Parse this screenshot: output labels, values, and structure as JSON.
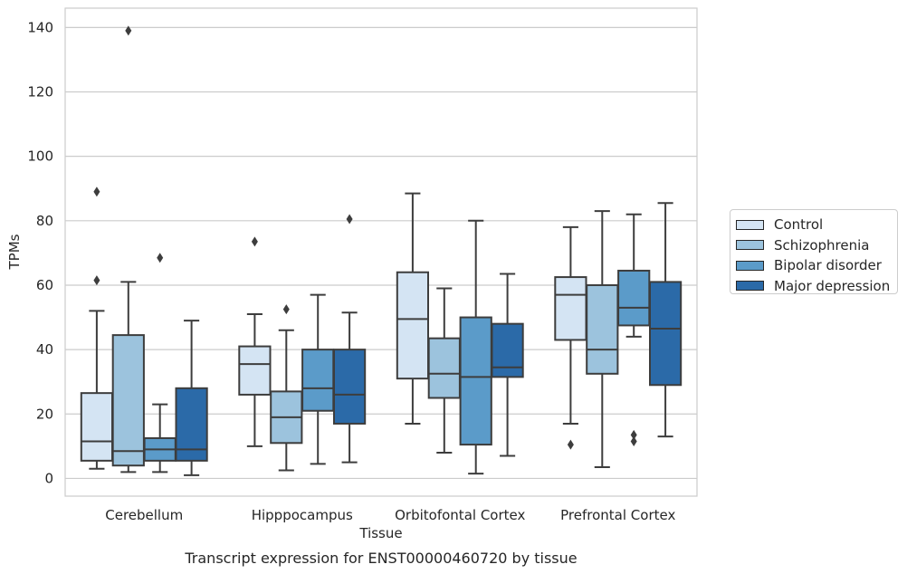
{
  "chart_data": {
    "type": "boxplot",
    "title": "Transcript expression for ENST00000460720 by tissue",
    "xlabel": "Tissue",
    "ylabel": "TPMs",
    "ylim": [
      -5.5,
      146
    ],
    "yticks": [
      0,
      20,
      40,
      60,
      80,
      100,
      120,
      140
    ],
    "grid": "horizontal",
    "legend_position": "right",
    "categories": [
      "Cerebellum",
      "Hipppocampus",
      "Orbitofontal Cortex",
      "Prefrontal Cortex"
    ],
    "series": [
      {
        "name": "Control",
        "color": "#d4e4f3",
        "boxes": [
          {
            "min": 3,
            "q1": 5.5,
            "median": 11.5,
            "q3": 26.5,
            "max": 52,
            "outliers": [
              61.5,
              89
            ]
          },
          {
            "min": 10,
            "q1": 26,
            "median": 35.5,
            "q3": 41,
            "max": 51,
            "outliers": [
              73.5
            ]
          },
          {
            "min": 17,
            "q1": 31,
            "median": 49.5,
            "q3": 64,
            "max": 88.5,
            "outliers": []
          },
          {
            "min": 17,
            "q1": 43,
            "median": 57,
            "q3": 62.5,
            "max": 78,
            "outliers": [
              10.5
            ]
          }
        ]
      },
      {
        "name": "Schizophrenia",
        "color": "#9cc3dd",
        "boxes": [
          {
            "min": 2,
            "q1": 4,
            "median": 8.5,
            "q3": 44.5,
            "max": 61,
            "outliers": [
              139
            ]
          },
          {
            "min": 2.5,
            "q1": 11,
            "median": 19,
            "q3": 27,
            "max": 46,
            "outliers": [
              52.5
            ]
          },
          {
            "min": 8,
            "q1": 25,
            "median": 32.5,
            "q3": 43.5,
            "max": 59,
            "outliers": []
          },
          {
            "min": 3.5,
            "q1": 32.5,
            "median": 40,
            "q3": 60,
            "max": 83,
            "outliers": []
          }
        ]
      },
      {
        "name": "Bipolar disorder",
        "color": "#5b9bc9",
        "boxes": [
          {
            "min": 2,
            "q1": 5.5,
            "median": 9,
            "q3": 12.5,
            "max": 23,
            "outliers": [
              68.5
            ]
          },
          {
            "min": 4.5,
            "q1": 21,
            "median": 28,
            "q3": 40,
            "max": 57,
            "outliers": []
          },
          {
            "min": 1.5,
            "q1": 10.5,
            "median": 31.5,
            "q3": 50,
            "max": 80,
            "outliers": []
          },
          {
            "min": 44,
            "q1": 47.5,
            "median": 53,
            "q3": 64.5,
            "max": 82,
            "outliers": [
              11.5,
              13.5
            ]
          }
        ]
      },
      {
        "name": "Major depression",
        "color": "#2b6aa8",
        "boxes": [
          {
            "min": 1,
            "q1": 5.5,
            "median": 9,
            "q3": 28,
            "max": 49,
            "outliers": []
          },
          {
            "min": 5,
            "q1": 17,
            "median": 26,
            "q3": 40,
            "max": 51.5,
            "outliers": [
              80.5
            ]
          },
          {
            "min": 7,
            "q1": 31.5,
            "median": 34.5,
            "q3": 48,
            "max": 63.5,
            "outliers": []
          },
          {
            "min": 13,
            "q1": 29,
            "median": 46.5,
            "q3": 61,
            "max": 85.5,
            "outliers": []
          }
        ]
      }
    ]
  }
}
